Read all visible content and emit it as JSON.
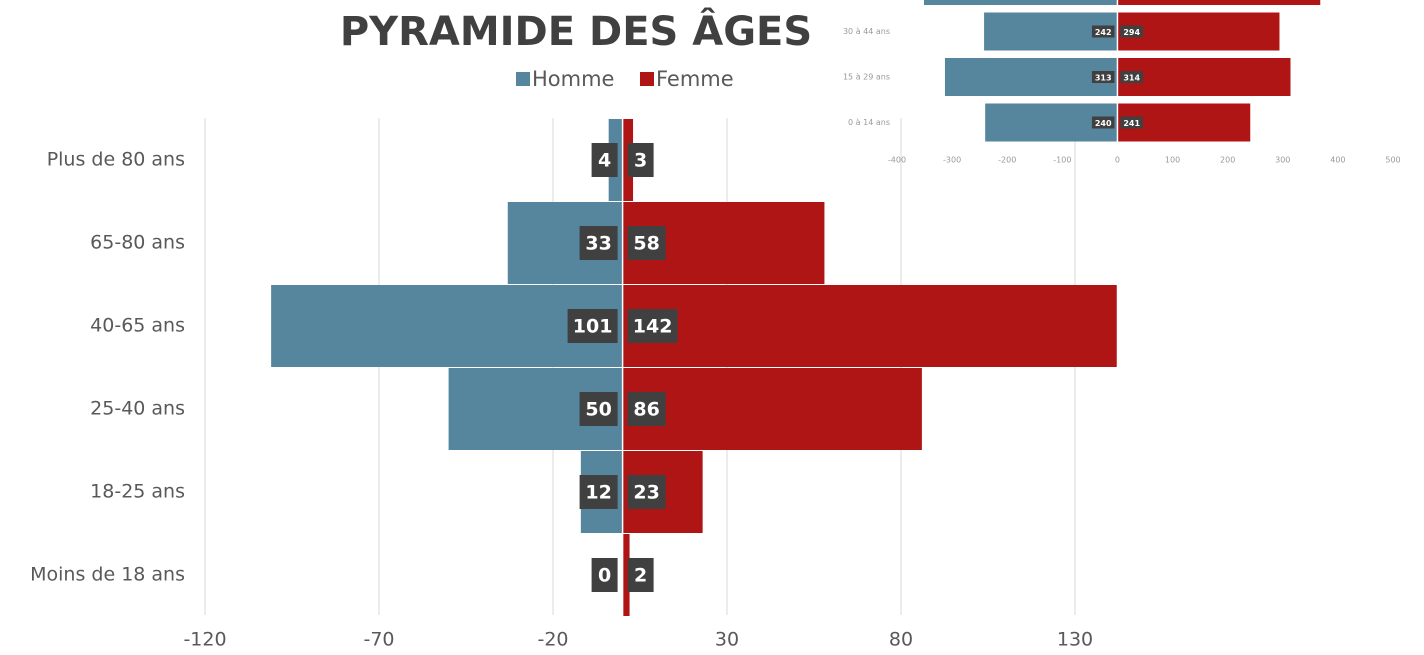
{
  "chart_data": [
    {
      "type": "bar",
      "orientation": "horizontal",
      "title": "PYRAMIDE DES ÂGES",
      "categories": [
        "Plus de 80 ans",
        "65-80 ans",
        "40-65 ans",
        "25-40 ans",
        "18-25 ans",
        "Moins de 18 ans"
      ],
      "series": [
        {
          "name": "Homme",
          "color": "#55869e",
          "values": [
            -4,
            -33,
            -101,
            -50,
            -12,
            0
          ],
          "value_labels": [
            "4",
            "33",
            "101",
            "50",
            "12",
            "0"
          ]
        },
        {
          "name": "Femme",
          "color": "#b01515",
          "values": [
            3,
            58,
            142,
            86,
            23,
            2
          ]
        }
      ],
      "xlim": [
        -120,
        130
      ],
      "xticks": [
        -120,
        -70,
        -20,
        30,
        80,
        130
      ],
      "grid": true,
      "legend": "top"
    },
    {
      "type": "bar",
      "orientation": "horizontal",
      "categories": [
        null,
        "30 à 44 ans",
        "15 à 29 ans",
        "0 à 14 ans"
      ],
      "series": [
        {
          "name": "Homme",
          "color": "#55869e",
          "values": [
            -351,
            -242,
            -313,
            -240
          ],
          "value_labels": [
            null,
            "242",
            "313",
            "240"
          ]
        },
        {
          "name": "Femme",
          "color": "#b01515",
          "values": [
            368,
            294,
            314,
            241
          ]
        }
      ],
      "xlim": [
        -400,
        500
      ],
      "xticks": [
        -400,
        -300,
        -200,
        -100,
        0,
        100,
        200,
        300,
        400,
        500
      ],
      "grid": false
    }
  ]
}
